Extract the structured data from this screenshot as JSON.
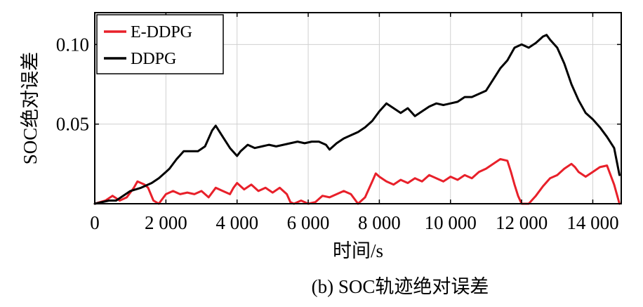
{
  "chart_data": {
    "type": "line",
    "title": "",
    "caption": "(b) SOC轨迹绝对误差",
    "xlabel": "时间/s",
    "ylabel": "SOC绝对误差",
    "xlim": [
      0,
      14800
    ],
    "ylim": [
      0,
      0.12
    ],
    "grid": true,
    "legend_position": "top-left",
    "x_ticks": [
      {
        "value": 0,
        "label": "0"
      },
      {
        "value": 2000,
        "label": "2 000"
      },
      {
        "value": 4000,
        "label": "4 000"
      },
      {
        "value": 6000,
        "label": "6 000"
      },
      {
        "value": 8000,
        "label": "8 000"
      },
      {
        "value": 10000,
        "label": "10 000"
      },
      {
        "value": 12000,
        "label": "12 000"
      },
      {
        "value": 14000,
        "label": "14 000"
      }
    ],
    "y_ticks": [
      {
        "value": 0.05,
        "label": "0.05"
      },
      {
        "value": 0.1,
        "label": "0.10"
      }
    ],
    "series": [
      {
        "name": "E-DDPG",
        "color": "#e8202a",
        "x": [
          0,
          300,
          500,
          700,
          900,
          1100,
          1200,
          1400,
          1500,
          1650,
          1800,
          2000,
          2200,
          2400,
          2600,
          2800,
          3000,
          3200,
          3400,
          3600,
          3800,
          3900,
          4000,
          4200,
          4400,
          4600,
          4800,
          5000,
          5200,
          5400,
          5500,
          5600,
          5800,
          6000,
          6200,
          6400,
          6600,
          6800,
          7000,
          7200,
          7400,
          7600,
          7800,
          7900,
          8000,
          8200,
          8400,
          8600,
          8800,
          9000,
          9200,
          9400,
          9600,
          9800,
          10000,
          10200,
          10400,
          10600,
          10800,
          11000,
          11200,
          11400,
          11600,
          11700,
          11800,
          11900,
          12000,
          12200,
          12400,
          12600,
          12800,
          13000,
          13200,
          13400,
          13500,
          13600,
          13800,
          14000,
          14200,
          14400,
          14600,
          14750
        ],
        "y": [
          0.0,
          0.002,
          0.005,
          0.002,
          0.004,
          0.01,
          0.014,
          0.012,
          0.01,
          0.002,
          0.0,
          0.006,
          0.008,
          0.006,
          0.007,
          0.006,
          0.008,
          0.004,
          0.01,
          0.008,
          0.006,
          0.01,
          0.013,
          0.009,
          0.012,
          0.008,
          0.01,
          0.007,
          0.01,
          0.006,
          0.001,
          0.0,
          0.002,
          0.0,
          0.001,
          0.005,
          0.004,
          0.006,
          0.008,
          0.006,
          0.0,
          0.004,
          0.014,
          0.019,
          0.017,
          0.014,
          0.012,
          0.015,
          0.013,
          0.016,
          0.014,
          0.018,
          0.016,
          0.014,
          0.017,
          0.015,
          0.018,
          0.016,
          0.02,
          0.022,
          0.025,
          0.028,
          0.027,
          0.02,
          0.012,
          0.005,
          0.0,
          0.0,
          0.005,
          0.011,
          0.016,
          0.018,
          0.022,
          0.025,
          0.023,
          0.02,
          0.017,
          0.02,
          0.023,
          0.024,
          0.012,
          0.0
        ]
      },
      {
        "name": "DDPG",
        "color": "#000000",
        "x": [
          0,
          400,
          600,
          800,
          1000,
          1300,
          1600,
          1800,
          2000,
          2100,
          2300,
          2500,
          2700,
          2900,
          3100,
          3300,
          3400,
          3600,
          3800,
          4000,
          4100,
          4300,
          4500,
          4700,
          4900,
          5100,
          5300,
          5500,
          5700,
          5900,
          6100,
          6300,
          6500,
          6600,
          6800,
          7000,
          7200,
          7400,
          7600,
          7800,
          8000,
          8200,
          8400,
          8600,
          8800,
          9000,
          9200,
          9400,
          9600,
          9800,
          10000,
          10200,
          10400,
          10600,
          10800,
          11000,
          11200,
          11400,
          11600,
          11800,
          12000,
          12200,
          12400,
          12600,
          12700,
          12800,
          13000,
          13200,
          13400,
          13600,
          13800,
          14000,
          14200,
          14400,
          14600,
          14750
        ],
        "y": [
          0.0,
          0.002,
          0.002,
          0.005,
          0.008,
          0.01,
          0.013,
          0.016,
          0.02,
          0.022,
          0.028,
          0.033,
          0.033,
          0.033,
          0.036,
          0.046,
          0.049,
          0.042,
          0.035,
          0.03,
          0.033,
          0.037,
          0.035,
          0.036,
          0.037,
          0.036,
          0.037,
          0.038,
          0.039,
          0.038,
          0.039,
          0.039,
          0.037,
          0.034,
          0.038,
          0.041,
          0.043,
          0.045,
          0.048,
          0.052,
          0.058,
          0.063,
          0.06,
          0.057,
          0.06,
          0.055,
          0.058,
          0.061,
          0.063,
          0.062,
          0.063,
          0.064,
          0.067,
          0.067,
          0.069,
          0.071,
          0.078,
          0.085,
          0.09,
          0.098,
          0.1,
          0.098,
          0.101,
          0.105,
          0.106,
          0.103,
          0.098,
          0.088,
          0.075,
          0.065,
          0.057,
          0.053,
          0.048,
          0.042,
          0.035,
          0.018
        ]
      }
    ]
  }
}
